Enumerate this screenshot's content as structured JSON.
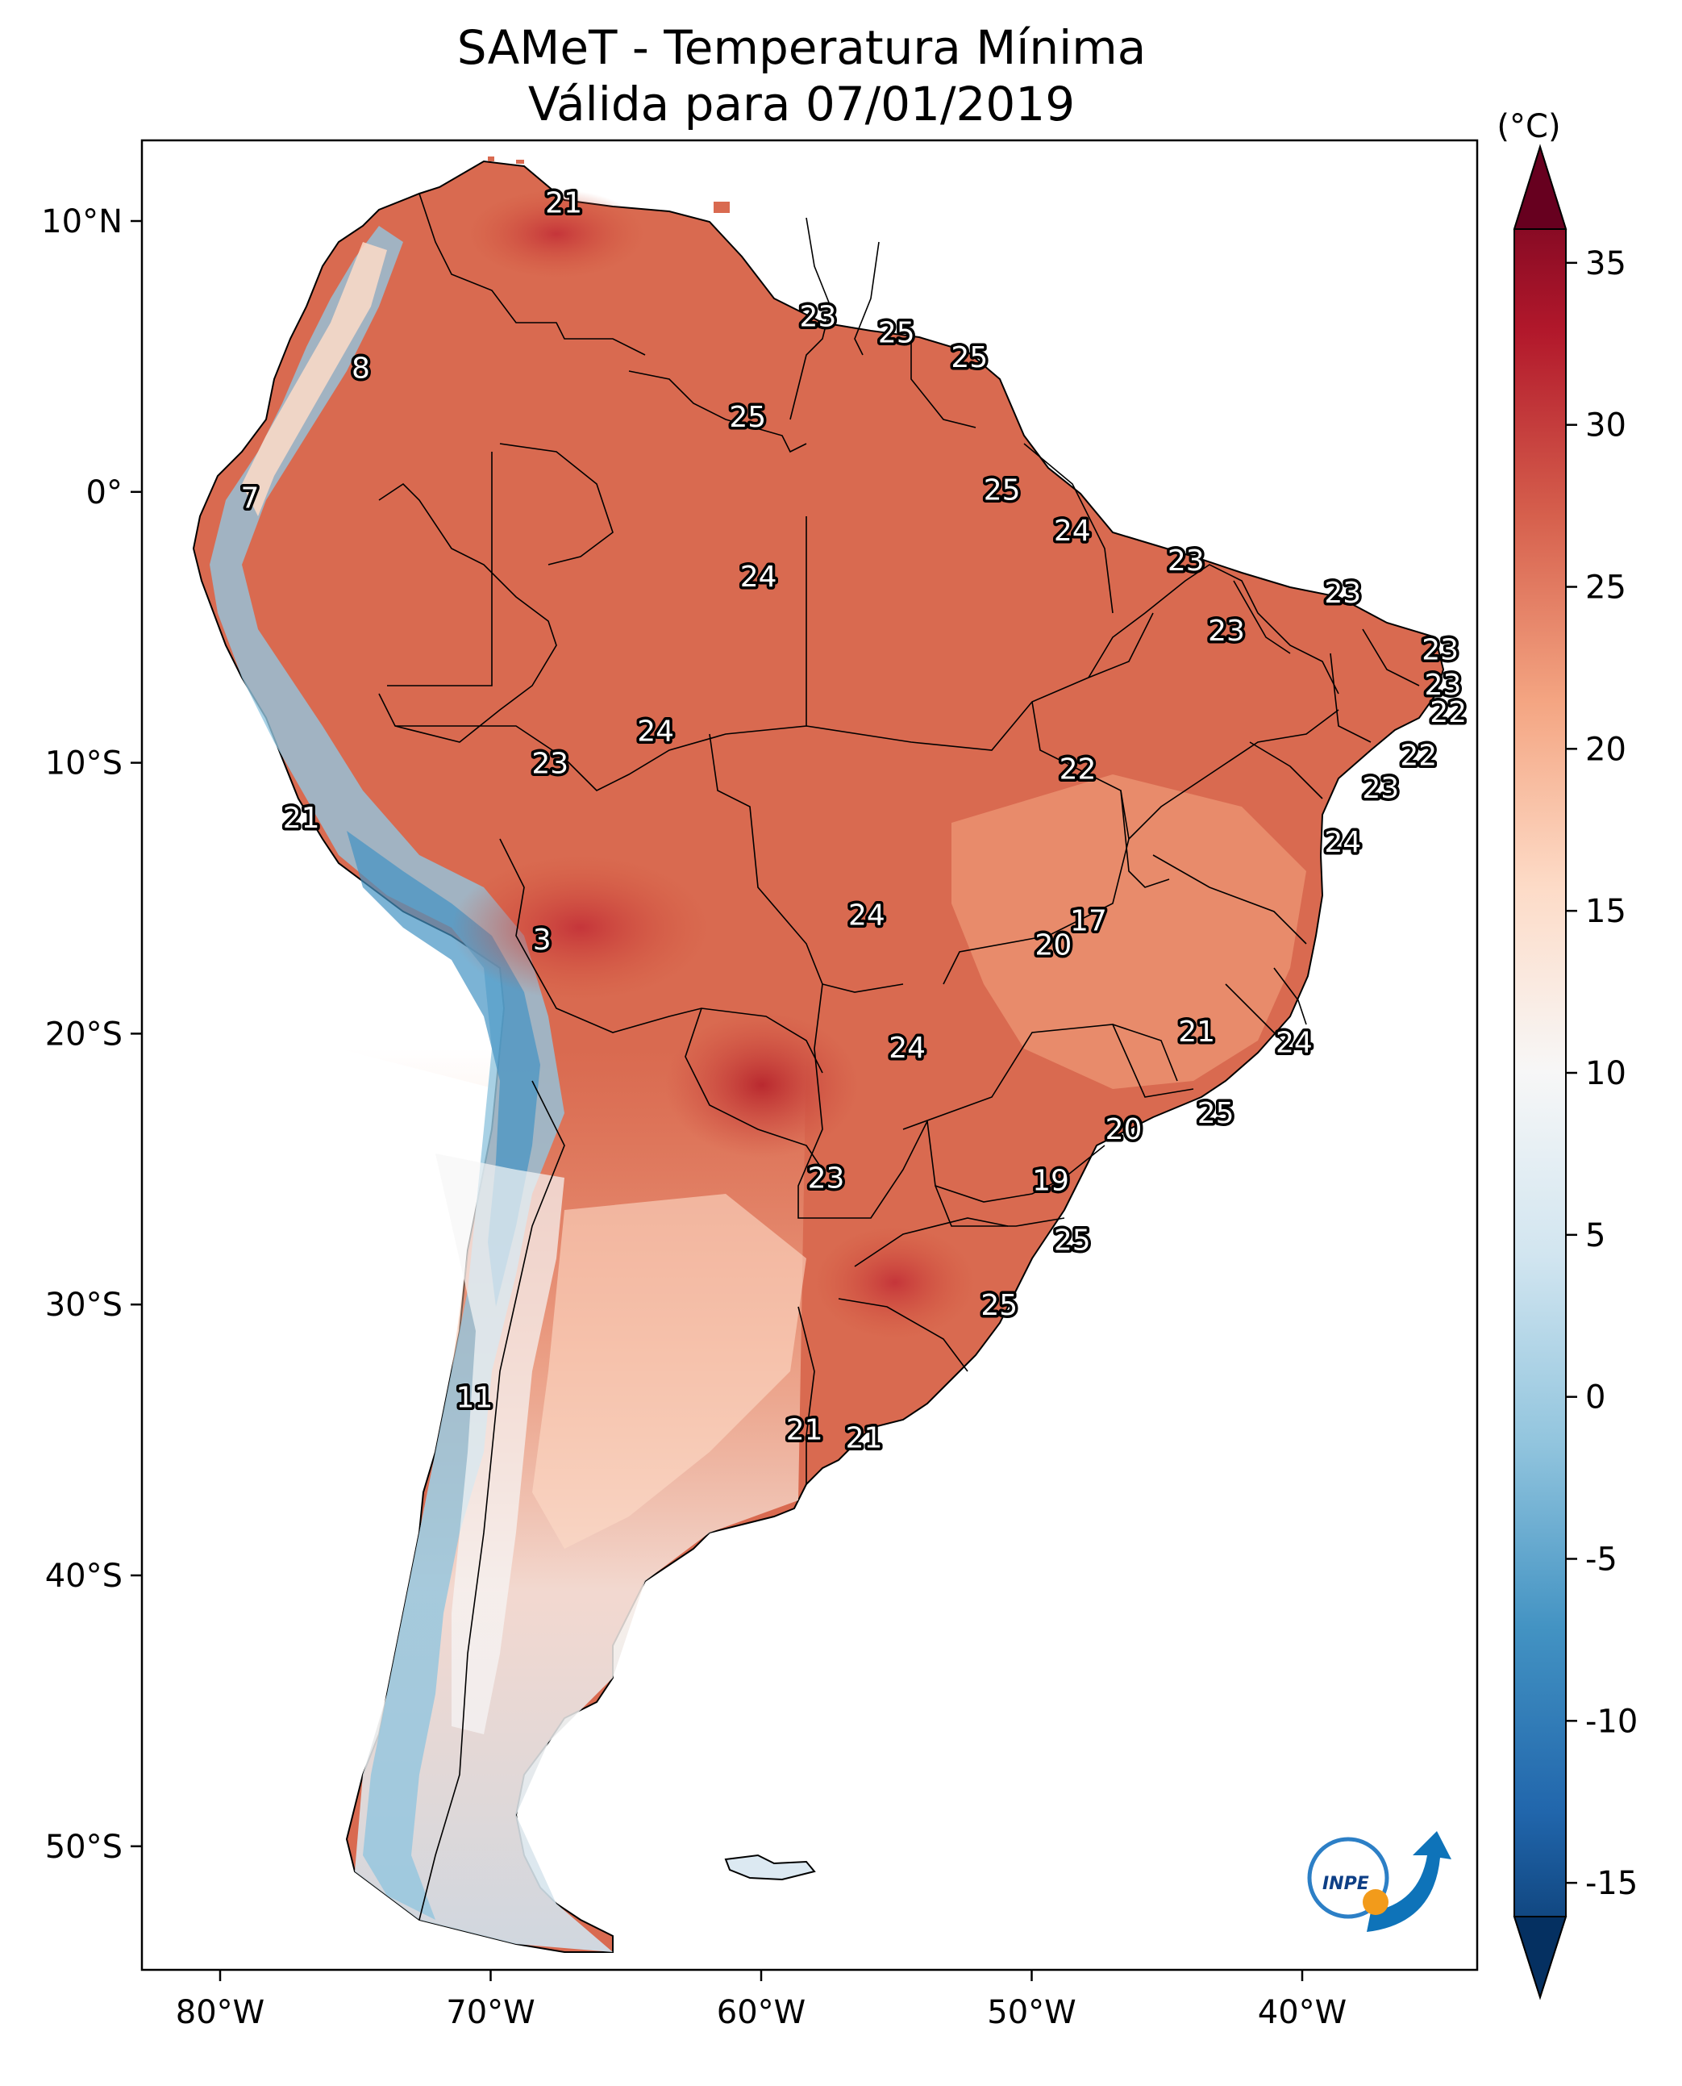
{
  "title": "SAMeT - Temperatura Mínima",
  "subtitle": "Válida para 07/01/2019",
  "axes": {
    "lon_ticks": [
      "80°W",
      "70°W",
      "60°W",
      "50°W",
      "40°W"
    ],
    "lat_ticks": [
      "10°N",
      "0°",
      "10°S",
      "20°S",
      "30°S",
      "40°S",
      "50°S"
    ]
  },
  "colorbar": {
    "unit": "(°C)",
    "ticks": [
      "35",
      "30",
      "25",
      "20",
      "15",
      "10",
      "5",
      "0",
      "-5",
      "-10",
      "-15"
    ],
    "range": [
      -15,
      35
    ],
    "colors": [
      "#053061",
      "#2166ac",
      "#4393c3",
      "#92c5de",
      "#d1e5f0",
      "#f7f7f7",
      "#fddbc7",
      "#f4a582",
      "#d6604d",
      "#b2182b",
      "#67001f"
    ]
  },
  "logo": {
    "text": "INPE"
  },
  "labels": [
    {
      "value": "21",
      "lon": -67.3,
      "lat": 10.7
    },
    {
      "value": "8",
      "lon": -74.8,
      "lat": 4.6
    },
    {
      "value": "23",
      "lon": -57.9,
      "lat": 6.5
    },
    {
      "value": "25",
      "lon": -55.0,
      "lat": 5.9
    },
    {
      "value": "25",
      "lon": -52.3,
      "lat": 5.0
    },
    {
      "value": "25",
      "lon": -60.5,
      "lat": 2.8
    },
    {
      "value": "7",
      "lon": -78.9,
      "lat": -0.2
    },
    {
      "value": "25",
      "lon": -51.1,
      "lat": 0.1
    },
    {
      "value": "24",
      "lon": -48.5,
      "lat": -1.4
    },
    {
      "value": "24",
      "lon": -60.1,
      "lat": -3.1
    },
    {
      "value": "23",
      "lon": -44.3,
      "lat": -2.5
    },
    {
      "value": "23",
      "lon": -38.5,
      "lat": -3.7
    },
    {
      "value": "23",
      "lon": -42.8,
      "lat": -5.1
    },
    {
      "value": "23",
      "lon": -34.9,
      "lat": -5.8
    },
    {
      "value": "23",
      "lon": -34.8,
      "lat": -7.1
    },
    {
      "value": "22",
      "lon": -34.6,
      "lat": -8.1
    },
    {
      "value": "24",
      "lon": -63.9,
      "lat": -8.8
    },
    {
      "value": "23",
      "lon": -67.8,
      "lat": -10.0
    },
    {
      "value": "22",
      "lon": -48.3,
      "lat": -10.2
    },
    {
      "value": "22",
      "lon": -35.7,
      "lat": -9.7
    },
    {
      "value": "23",
      "lon": -37.1,
      "lat": -10.9
    },
    {
      "value": "21",
      "lon": -77.0,
      "lat": -12.0
    },
    {
      "value": "24",
      "lon": -38.5,
      "lat": -12.9
    },
    {
      "value": "24",
      "lon": -56.1,
      "lat": -15.6
    },
    {
      "value": "17",
      "lon": -47.9,
      "lat": -15.8
    },
    {
      "value": "20",
      "lon": -49.2,
      "lat": -16.7
    },
    {
      "value": "3",
      "lon": -68.1,
      "lat": -16.5
    },
    {
      "value": "21",
      "lon": -43.9,
      "lat": -19.9
    },
    {
      "value": "24",
      "lon": -40.3,
      "lat": -20.3
    },
    {
      "value": "24",
      "lon": -54.6,
      "lat": -20.5
    },
    {
      "value": "25",
      "lon": -43.2,
      "lat": -22.9
    },
    {
      "value": "20",
      "lon": -46.6,
      "lat": -23.5
    },
    {
      "value": "23",
      "lon": -57.6,
      "lat": -25.3
    },
    {
      "value": "19",
      "lon": -49.3,
      "lat": -25.4
    },
    {
      "value": "25",
      "lon": -48.5,
      "lat": -27.6
    },
    {
      "value": "25",
      "lon": -51.2,
      "lat": -30.0
    },
    {
      "value": "11",
      "lon": -70.6,
      "lat": -33.4
    },
    {
      "value": "21",
      "lon": -58.4,
      "lat": -34.6
    },
    {
      "value": "21",
      "lon": -56.2,
      "lat": -34.9
    }
  ]
}
